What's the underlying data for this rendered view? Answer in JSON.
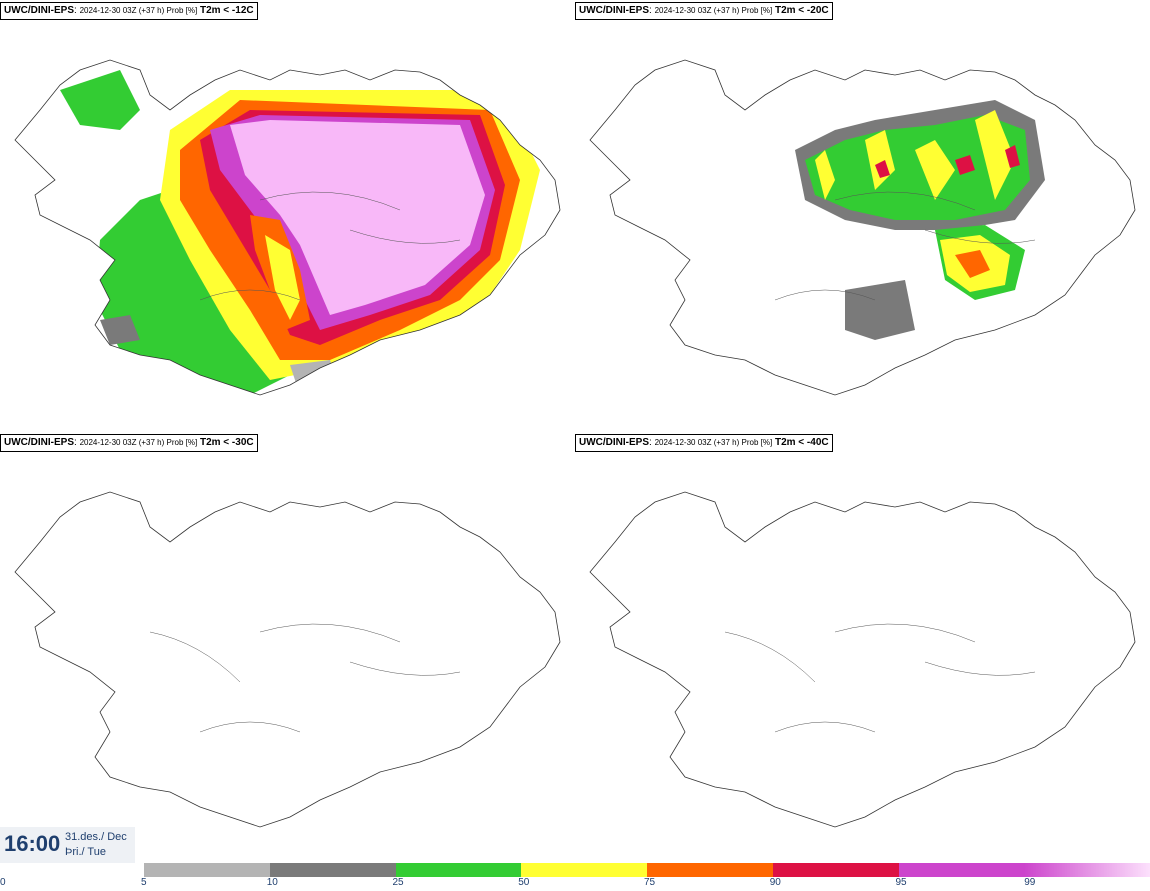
{
  "panels": [
    {
      "model": "UWC/DINI-EPS",
      "info": "2024-12-30 03Z (+37 h) Prob [%]",
      "threshold": "T2m < -12C"
    },
    {
      "model": "UWC/DINI-EPS",
      "info": "2024-12-30 03Z (+37 h) Prob [%]",
      "threshold": "T2m < -20C"
    },
    {
      "model": "UWC/DINI-EPS",
      "info": "2024-12-30 03Z (+37 h) Prob [%]",
      "threshold": "T2m < -30C"
    },
    {
      "model": "UWC/DINI-EPS",
      "info": "2024-12-30 03Z (+37 h) Prob [%]",
      "threshold": "T2m < -40C"
    }
  ],
  "time": {
    "hour": "16:00",
    "date": "31.des./ Dec",
    "weekday": "Þri./ Tue"
  },
  "colorbar": {
    "ticks": [
      "0",
      "5",
      "10",
      "25",
      "50",
      "75",
      "90",
      "95",
      "99"
    ],
    "colors": [
      "#b4b4b4",
      "#7a7a7a",
      "#33cc33",
      "#ffff33",
      "#ff6600",
      "#dd1144",
      "#cc44cc",
      "#f8b8f8"
    ]
  }
}
